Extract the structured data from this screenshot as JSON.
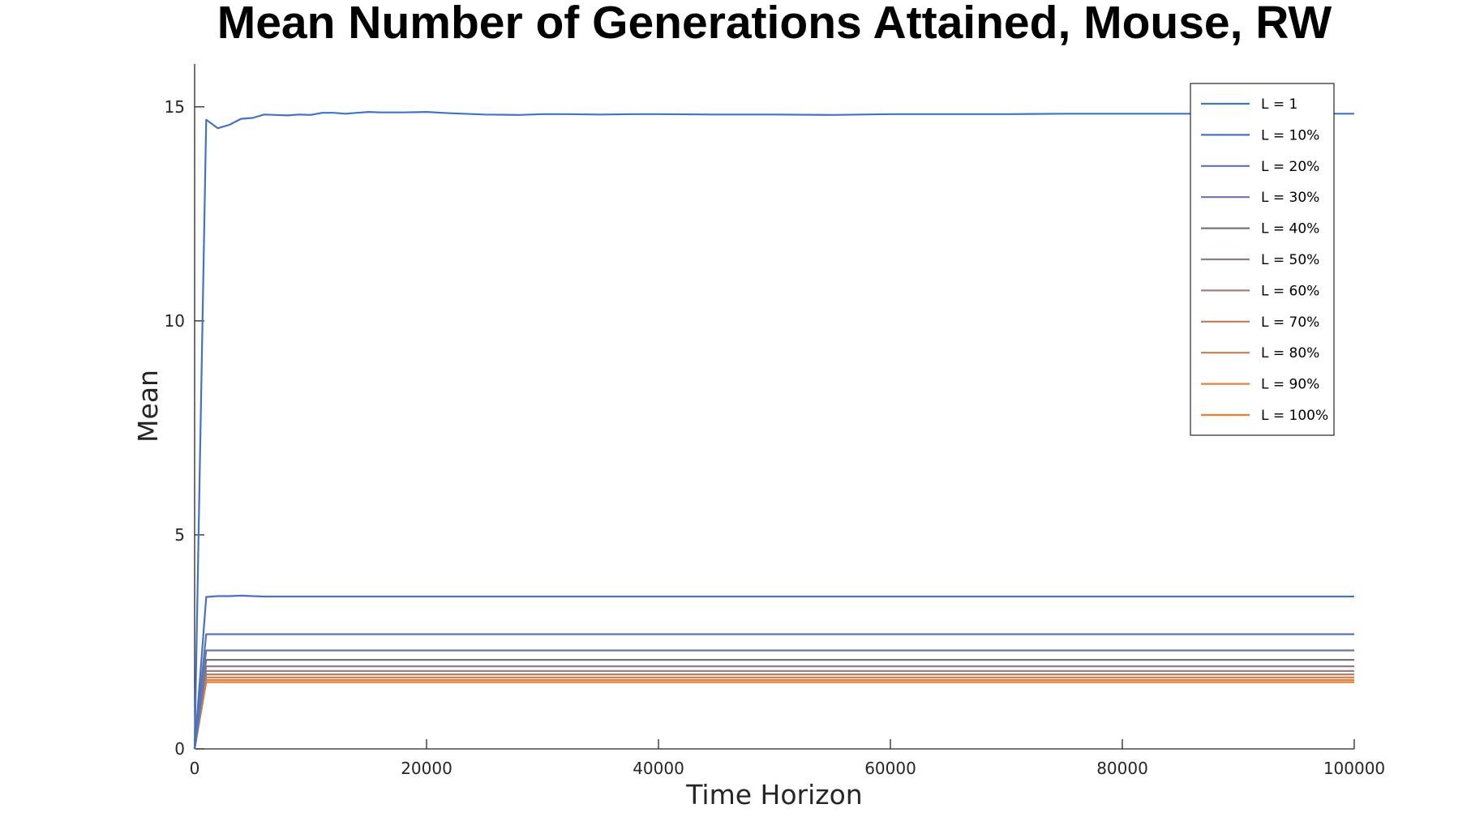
{
  "chart_data": {
    "type": "line",
    "title": "Mean Number of Generations Attained, Mouse, RW",
    "xlabel": "Time Horizon",
    "ylabel": "Mean",
    "xlim": [
      0,
      100000
    ],
    "ylim": [
      0,
      16
    ],
    "xticks": [
      0,
      20000,
      40000,
      60000,
      80000,
      100000
    ],
    "xtick_labels": [
      "0",
      "20000",
      "40000",
      "60000",
      "80000",
      "100000"
    ],
    "yticks": [
      0,
      5,
      10,
      15
    ],
    "ytick_labels": [
      "0",
      "5",
      "10",
      "15"
    ],
    "grid": false,
    "legend_position": "top-right",
    "x": [
      0,
      1000,
      2000,
      3000,
      4000,
      5000,
      6000,
      7000,
      8000,
      9000,
      10000,
      11000,
      12000,
      13000,
      14000,
      15000,
      16000,
      18000,
      20000,
      22000,
      25000,
      28000,
      30000,
      32000,
      35000,
      38000,
      40000,
      45000,
      50000,
      55000,
      60000,
      65000,
      70000,
      75000,
      80000,
      85000,
      90000,
      95000,
      100000
    ],
    "series": [
      {
        "name": "L = 1",
        "color": "#4472c4",
        "values": [
          0,
          14.7,
          14.5,
          14.58,
          14.72,
          14.74,
          14.82,
          14.81,
          14.8,
          14.82,
          14.81,
          14.86,
          14.86,
          14.84,
          14.86,
          14.88,
          14.87,
          14.87,
          14.88,
          14.85,
          14.82,
          14.81,
          14.83,
          14.83,
          14.82,
          14.83,
          14.83,
          14.82,
          14.82,
          14.81,
          14.83,
          14.83,
          14.83,
          14.84,
          14.84,
          14.84,
          14.84,
          14.84,
          14.84
        ]
      },
      {
        "name": "L = 10%",
        "color": "#4a70c8",
        "values": [
          0,
          3.55,
          3.57,
          3.57,
          3.58,
          3.57,
          3.56,
          3.56,
          3.56,
          3.56,
          3.56,
          3.56,
          3.56,
          3.56,
          3.56,
          3.56,
          3.56,
          3.56,
          3.56,
          3.56,
          3.56,
          3.56,
          3.56,
          3.56,
          3.56,
          3.56,
          3.56,
          3.56,
          3.56,
          3.56,
          3.56,
          3.56,
          3.56,
          3.56,
          3.56,
          3.56,
          3.56,
          3.56,
          3.56
        ]
      },
      {
        "name": "L = 20%",
        "color": "#5a73b5",
        "values": [
          0,
          2.68,
          2.68,
          2.68,
          2.68,
          2.68,
          2.68,
          2.68,
          2.68,
          2.68,
          2.68,
          2.68,
          2.68,
          2.68,
          2.68,
          2.68,
          2.68,
          2.68,
          2.68,
          2.68,
          2.68,
          2.68,
          2.68,
          2.68,
          2.68,
          2.68,
          2.68,
          2.68,
          2.68,
          2.68,
          2.68,
          2.68,
          2.68,
          2.68,
          2.68,
          2.68,
          2.68,
          2.68,
          2.68
        ]
      },
      {
        "name": "L = 30%",
        "color": "#6a76a6",
        "values": [
          0,
          2.3,
          2.3,
          2.3,
          2.3,
          2.3,
          2.3,
          2.3,
          2.3,
          2.3,
          2.3,
          2.3,
          2.3,
          2.3,
          2.3,
          2.3,
          2.3,
          2.3,
          2.3,
          2.3,
          2.3,
          2.3,
          2.3,
          2.3,
          2.3,
          2.3,
          2.3,
          2.3,
          2.3,
          2.3,
          2.3,
          2.3,
          2.3,
          2.3,
          2.3,
          2.3,
          2.3,
          2.3,
          2.3
        ]
      },
      {
        "name": "L = 40%",
        "color": "#777777",
        "values": [
          0,
          2.08,
          2.08,
          2.08,
          2.08,
          2.08,
          2.08,
          2.08,
          2.08,
          2.08,
          2.08,
          2.08,
          2.08,
          2.08,
          2.08,
          2.08,
          2.08,
          2.08,
          2.08,
          2.08,
          2.08,
          2.08,
          2.08,
          2.08,
          2.08,
          2.08,
          2.08,
          2.08,
          2.08,
          2.08,
          2.08,
          2.08,
          2.08,
          2.08,
          2.08,
          2.08,
          2.08,
          2.08,
          2.08
        ]
      },
      {
        "name": "L = 50%",
        "color": "#8e7d8c",
        "values": [
          0,
          1.93,
          1.93,
          1.93,
          1.93,
          1.93,
          1.93,
          1.93,
          1.93,
          1.93,
          1.93,
          1.93,
          1.93,
          1.93,
          1.93,
          1.93,
          1.93,
          1.93,
          1.93,
          1.93,
          1.93,
          1.93,
          1.93,
          1.93,
          1.93,
          1.93,
          1.93,
          1.93,
          1.93,
          1.93,
          1.93,
          1.93,
          1.93,
          1.93,
          1.93,
          1.93,
          1.93,
          1.93,
          1.93
        ]
      },
      {
        "name": "L = 60%",
        "color": "#a08080",
        "values": [
          0,
          1.82,
          1.82,
          1.82,
          1.82,
          1.82,
          1.82,
          1.82,
          1.82,
          1.82,
          1.82,
          1.82,
          1.82,
          1.82,
          1.82,
          1.82,
          1.82,
          1.82,
          1.82,
          1.82,
          1.82,
          1.82,
          1.82,
          1.82,
          1.82,
          1.82,
          1.82,
          1.82,
          1.82,
          1.82,
          1.82,
          1.82,
          1.82,
          1.82,
          1.82,
          1.82,
          1.82,
          1.82,
          1.82
        ]
      },
      {
        "name": "L = 70%",
        "color": "#b87c5e",
        "values": [
          0,
          1.74,
          1.74,
          1.74,
          1.74,
          1.74,
          1.74,
          1.74,
          1.74,
          1.74,
          1.74,
          1.74,
          1.74,
          1.74,
          1.74,
          1.74,
          1.74,
          1.74,
          1.74,
          1.74,
          1.74,
          1.74,
          1.74,
          1.74,
          1.74,
          1.74,
          1.74,
          1.74,
          1.74,
          1.74,
          1.74,
          1.74,
          1.74,
          1.74,
          1.74,
          1.74,
          1.74,
          1.74,
          1.74
        ]
      },
      {
        "name": "L = 80%",
        "color": "#c47f58",
        "values": [
          0,
          1.67,
          1.67,
          1.67,
          1.67,
          1.67,
          1.67,
          1.67,
          1.67,
          1.67,
          1.67,
          1.67,
          1.67,
          1.67,
          1.67,
          1.67,
          1.67,
          1.67,
          1.67,
          1.67,
          1.67,
          1.67,
          1.67,
          1.67,
          1.67,
          1.67,
          1.67,
          1.67,
          1.67,
          1.67,
          1.67,
          1.67,
          1.67,
          1.67,
          1.67,
          1.67,
          1.67,
          1.67,
          1.67
        ]
      },
      {
        "name": "L = 90%",
        "color": "#e08240",
        "values": [
          0,
          1.61,
          1.61,
          1.61,
          1.61,
          1.61,
          1.61,
          1.61,
          1.61,
          1.61,
          1.61,
          1.61,
          1.61,
          1.61,
          1.61,
          1.61,
          1.61,
          1.61,
          1.61,
          1.61,
          1.61,
          1.61,
          1.61,
          1.61,
          1.61,
          1.61,
          1.61,
          1.61,
          1.61,
          1.61,
          1.61,
          1.61,
          1.61,
          1.61,
          1.61,
          1.61,
          1.61,
          1.61,
          1.61
        ]
      },
      {
        "name": "L = 100%",
        "color": "#ed7d31",
        "values": [
          0,
          1.56,
          1.56,
          1.56,
          1.56,
          1.56,
          1.56,
          1.56,
          1.56,
          1.56,
          1.56,
          1.56,
          1.56,
          1.56,
          1.56,
          1.56,
          1.56,
          1.56,
          1.56,
          1.56,
          1.56,
          1.56,
          1.56,
          1.56,
          1.56,
          1.56,
          1.56,
          1.56,
          1.56,
          1.56,
          1.56,
          1.56,
          1.56,
          1.56,
          1.56,
          1.56,
          1.56,
          1.56,
          1.56
        ]
      }
    ]
  }
}
